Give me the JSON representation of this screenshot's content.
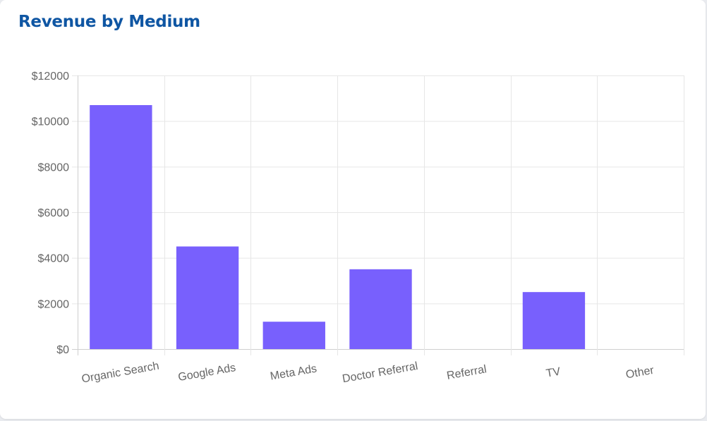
{
  "card": {
    "title": "Revenue by Medium"
  },
  "chart_data": {
    "type": "bar",
    "title": "Revenue by Medium",
    "xlabel": "",
    "ylabel": "",
    "categories": [
      "Organic Search",
      "Google Ads",
      "Meta Ads",
      "Doctor Referral",
      "Referral",
      "TV",
      "Other"
    ],
    "values": [
      10700,
      4500,
      1200,
      3500,
      0,
      2500,
      0
    ],
    "ylim": [
      0,
      12000
    ],
    "y_ticks": [
      0,
      2000,
      4000,
      6000,
      8000,
      10000,
      12000
    ],
    "y_tick_prefix": "$",
    "grid": true,
    "legend": "none",
    "colors": {
      "bar": "#7860fd",
      "grid": "#e6e6e6",
      "axis": "#cfcfcf",
      "title": "#0f56a3"
    }
  }
}
